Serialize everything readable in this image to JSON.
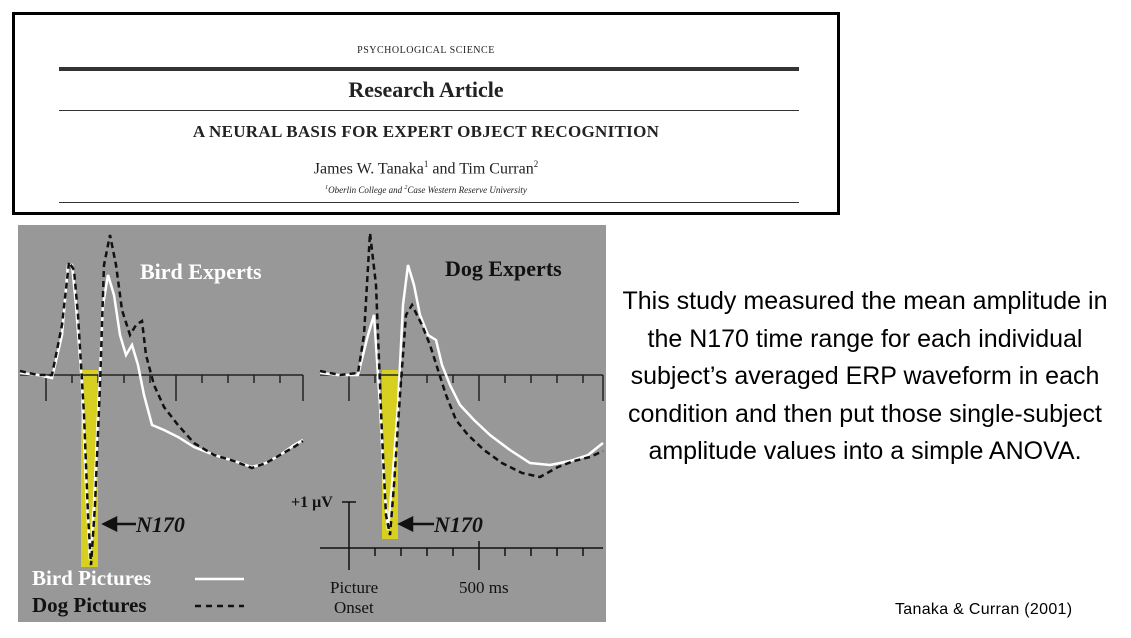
{
  "article": {
    "journal": "PSYCHOLOGICAL SCIENCE",
    "section": "Research Article",
    "title": "A NEURAL BASIS FOR EXPERT OBJECT RECOGNITION",
    "author1": "James W. Tanaka",
    "author1_sup": "1",
    "author_joiner": " and ",
    "author2": "Tim Curran",
    "author2_sup": "2",
    "affil1_sup": "1",
    "affil1": "Oberlin College and ",
    "affil2_sup": "2",
    "affil2": "Case Western Reserve University"
  },
  "figure": {
    "panel_left_title": "Bird Experts",
    "panel_right_title": "Dog Experts",
    "n170_label_left": "N170",
    "n170_label_right": "N170",
    "scale_label": "+1 μV",
    "legend_bird": "Bird Pictures",
    "legend_dog": "Dog Pictures",
    "x_label_onset_line1": "Picture",
    "x_label_onset_line2": "Onset",
    "x_label_500": "500 ms",
    "colors": {
      "background": "#989898",
      "bird_line": "#ffffff",
      "dog_line": "#111111",
      "n170_highlight": "#d8d020"
    },
    "line_styles": {
      "bird": "solid",
      "dog": "dashed"
    }
  },
  "caption": "This study measured the mean amplitude in the N170 time range for each individual subject’s averaged ERP waveform in each condition and then put those single-subject amplitude values into a simple ANOVA.",
  "citation": "Tanaka & Curran (2001)"
}
